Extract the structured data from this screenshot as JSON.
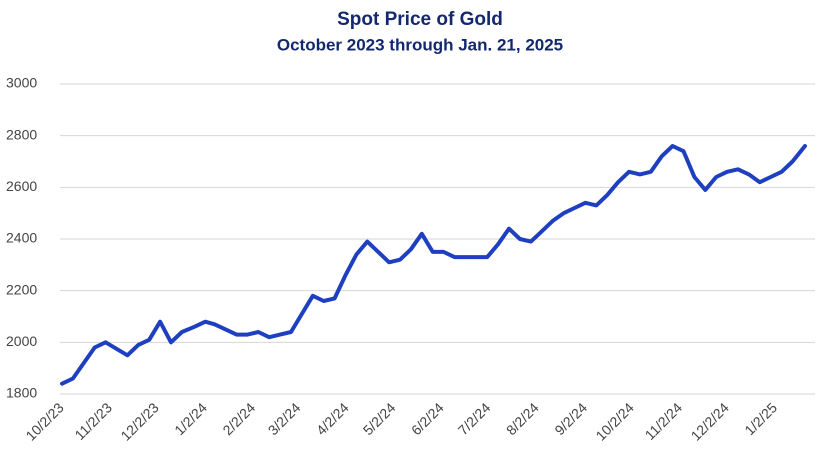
{
  "chart_data": {
    "type": "line",
    "title": "Spot Price of Gold",
    "subtitle": "October 2023 through Jan. 21, 2025",
    "x": [
      "10/2/23",
      "10/9/23",
      "10/16/23",
      "10/23/23",
      "10/30/23",
      "11/6/23",
      "11/13/23",
      "11/20/23",
      "11/27/23",
      "12/4/23",
      "12/11/23",
      "12/18/23",
      "12/26/23",
      "1/2/24",
      "1/8/24",
      "1/15/24",
      "1/22/24",
      "1/29/24",
      "2/5/24",
      "2/12/24",
      "2/19/24",
      "2/26/24",
      "3/4/24",
      "3/11/24",
      "3/18/24",
      "3/25/24",
      "4/1/24",
      "4/8/24",
      "4/15/24",
      "4/22/24",
      "4/29/24",
      "5/6/24",
      "5/13/24",
      "5/20/24",
      "5/27/24",
      "6/3/24",
      "6/10/24",
      "6/17/24",
      "6/24/24",
      "7/1/24",
      "7/8/24",
      "7/15/24",
      "7/22/24",
      "7/29/24",
      "8/5/24",
      "8/12/24",
      "8/19/24",
      "8/26/24",
      "9/2/24",
      "9/9/24",
      "9/16/24",
      "9/23/24",
      "9/30/24",
      "10/7/24",
      "10/14/24",
      "10/21/24",
      "10/28/24",
      "11/4/24",
      "11/11/24",
      "11/18/24",
      "11/25/24",
      "12/2/24",
      "12/9/24",
      "12/16/24",
      "12/23/24",
      "12/30/24",
      "1/6/25",
      "1/13/25",
      "1/21/25"
    ],
    "series": [
      {
        "color": "#1e3fc0",
        "values": [
          1840,
          1860,
          1920,
          1980,
          2000,
          1975,
          1950,
          1990,
          2010,
          2080,
          2000,
          2040,
          2060,
          2080,
          2070,
          2050,
          2030,
          2030,
          2040,
          2020,
          2030,
          2040,
          2110,
          2180,
          2160,
          2170,
          2260,
          2340,
          2390,
          2350,
          2310,
          2320,
          2360,
          2420,
          2350,
          2350,
          2330,
          2330,
          2330,
          2330,
          2380,
          2440,
          2400,
          2390,
          2430,
          2470,
          2500,
          2520,
          2540,
          2530,
          2570,
          2620,
          2660,
          2650,
          2660,
          2720,
          2760,
          2740,
          2640,
          2590,
          2640,
          2660,
          2670,
          2650,
          2620,
          2640,
          2660,
          2700,
          2760
        ]
      }
    ],
    "xlim": [
      "10/2/23",
      "1/21/25"
    ],
    "xticks": [
      "10/2/23",
      "11/2/23",
      "12/2/23",
      "1/2/24",
      "2/2/24",
      "3/2/24",
      "4/2/24",
      "5/2/24",
      "6/2/24",
      "7/2/24",
      "8/2/24",
      "9/2/24",
      "10/2/24",
      "11/2/24",
      "12/2/24",
      "1/2/25"
    ],
    "ylim": [
      1800,
      3000
    ],
    "yticks": [
      1800,
      2000,
      2200,
      2400,
      2600,
      2800,
      3000
    ],
    "grid": true
  }
}
